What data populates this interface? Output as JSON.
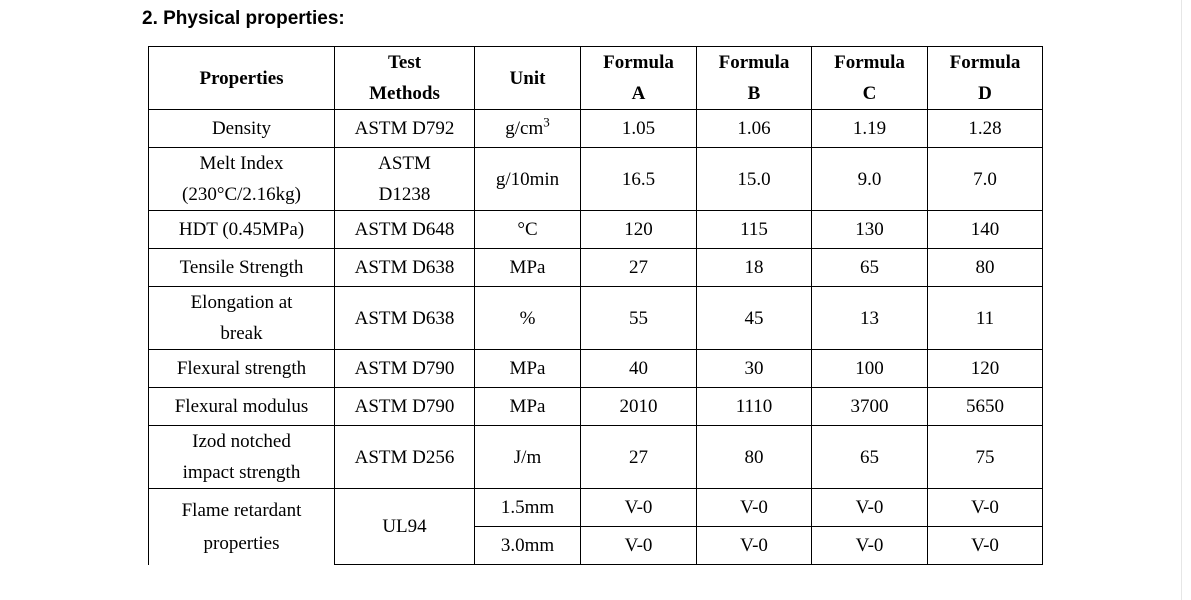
{
  "page": {
    "heading": "2. Physical properties:"
  },
  "table": {
    "headers": {
      "properties": "Properties",
      "test_methods": "Test\nMethods",
      "unit": "Unit",
      "formula_a": "Formula\nA",
      "formula_b": "Formula\nB",
      "formula_c": "Formula\nC",
      "formula_d": "Formula\nD"
    },
    "rows": [
      {
        "property": "Density",
        "method": "ASTM D792",
        "unit": "g/cm",
        "unit_sup": "3",
        "a": "1.05",
        "b": "1.06",
        "c": "1.19",
        "d": "1.28"
      },
      {
        "property": "Melt Index\n(230°C/2.16kg)",
        "method": "ASTM\nD1238",
        "unit": "g/10min",
        "a": "16.5",
        "b": "15.0",
        "c": "9.0",
        "d": "7.0"
      },
      {
        "property": "HDT (0.45MPa)",
        "method": "ASTM D648",
        "unit": "°C",
        "a": "120",
        "b": "115",
        "c": "130",
        "d": "140"
      },
      {
        "property": "Tensile Strength",
        "method": "ASTM D638",
        "unit": "MPa",
        "a": "27",
        "b": "18",
        "c": "65",
        "d": "80"
      },
      {
        "property": "Elongation at\nbreak",
        "method": "ASTM D638",
        "unit": "%",
        "a": "55",
        "b": "45",
        "c": "13",
        "d": "11"
      },
      {
        "property": "Flexural strength",
        "method": "ASTM D790",
        "unit": "MPa",
        "a": "40",
        "b": "30",
        "c": "100",
        "d": "120"
      },
      {
        "property": "Flexural modulus",
        "method": "ASTM D790",
        "unit": "MPa",
        "a": "2010",
        "b": "1110",
        "c": "3700",
        "d": "5650"
      },
      {
        "property": "Izod notched\nimpact strength",
        "method": "ASTM D256",
        "unit": "J/m",
        "a": "27",
        "b": "80",
        "c": "65",
        "d": "75"
      }
    ],
    "flame": {
      "property": "Flame retardant\nproperties",
      "method": "UL94",
      "sub_rows": [
        {
          "unit": "1.5mm",
          "a": "V-0",
          "b": "V-0",
          "c": "V-0",
          "d": "V-0"
        },
        {
          "unit": "3.0mm",
          "a": "V-0",
          "b": "V-0",
          "c": "V-0",
          "d": "V-0"
        }
      ]
    }
  }
}
